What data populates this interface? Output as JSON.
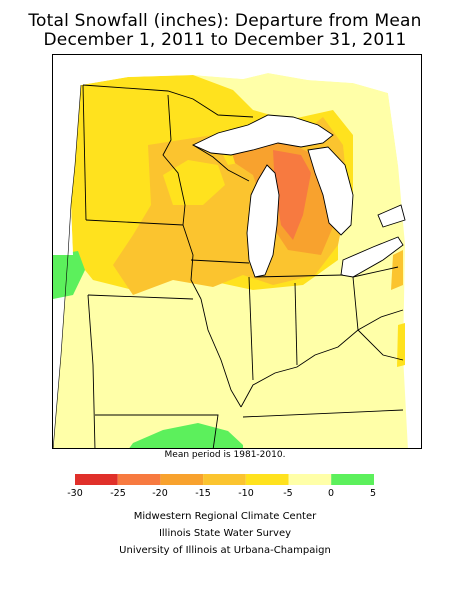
{
  "title": {
    "line1": "Total Snowfall (inches): Departure from Mean",
    "line2": "December 1, 2011 to December 31, 2011"
  },
  "map": {
    "region": "Midwest United States",
    "note": "Mean period is 1981-2010."
  },
  "legend": {
    "ticks": [
      "-30",
      "-25",
      "-20",
      "-15",
      "-10",
      "-5",
      "0",
      "5"
    ],
    "bins": [
      {
        "from": -30,
        "to": -25,
        "color": "#e0302a"
      },
      {
        "from": -25,
        "to": -20,
        "color": "#f77a40"
      },
      {
        "from": -20,
        "to": -15,
        "color": "#f8a22e"
      },
      {
        "from": -15,
        "to": -10,
        "color": "#fbc42f"
      },
      {
        "from": -10,
        "to": -5,
        "color": "#ffe21e"
      },
      {
        "from": -5,
        "to": 0,
        "color": "#ffffa8"
      },
      {
        "from": 0,
        "to": 5,
        "color": "#5cf05c"
      }
    ]
  },
  "credits": {
    "line1": "Midwestern Regional Climate Center",
    "line2": "Illinois State Water Survey",
    "line3": "University of Illinois at Urbana-Champaign"
  }
}
